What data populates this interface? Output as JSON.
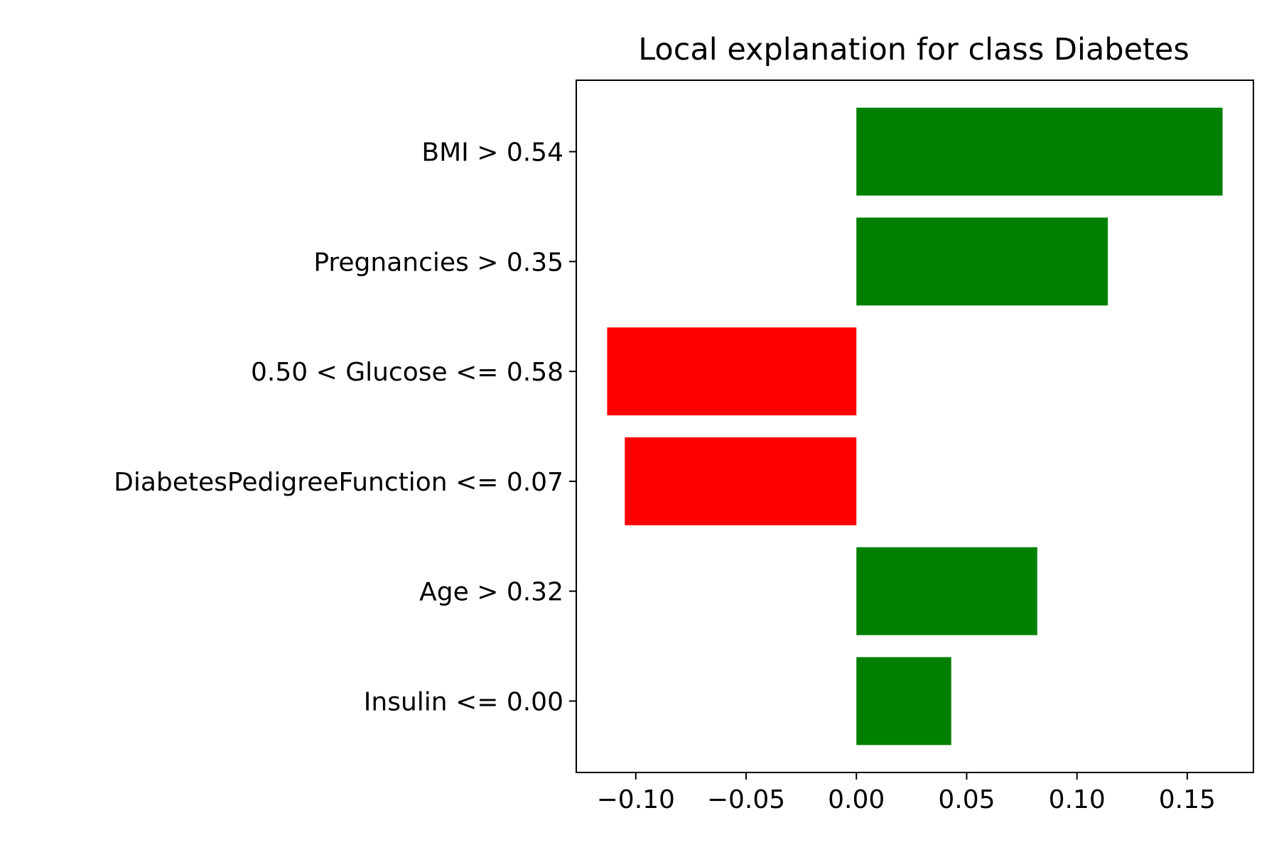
{
  "chart_data": {
    "type": "bar",
    "orientation": "horizontal",
    "title": "Local explanation for class Diabetes",
    "xlabel": "",
    "ylabel": "",
    "categories": [
      "BMI > 0.54",
      "Pregnancies > 0.35",
      "0.50 < Glucose <= 0.58",
      "DiabetesPedigreeFunction <= 0.07",
      "Age > 0.32",
      "Insulin <= 0.00"
    ],
    "values": [
      0.166,
      0.114,
      -0.113,
      -0.105,
      0.082,
      0.043
    ],
    "xlim": [
      -0.127,
      0.18
    ],
    "xticks": [
      -0.1,
      -0.05,
      0.0,
      0.05,
      0.1,
      0.15
    ],
    "xtick_labels": [
      "−0.10",
      "−0.05",
      "0.00",
      "0.05",
      "0.10",
      "0.15"
    ],
    "grid": false,
    "legend": "none",
    "colors": {
      "positive": "#008000",
      "negative": "#ff0000",
      "axes": "#000000",
      "background": "#ffffff"
    }
  }
}
